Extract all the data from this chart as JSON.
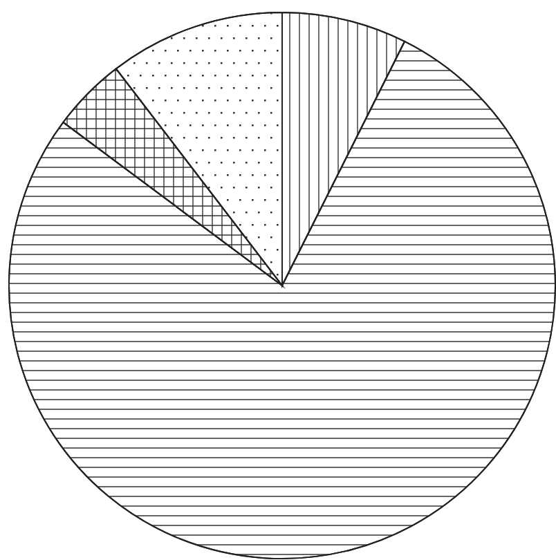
{
  "chart_data": {
    "type": "pie",
    "categories": [
      null,
      null,
      null,
      null
    ],
    "values": [
      7.4,
      77.8,
      4.4,
      10.4
    ],
    "colors": [
      "#ffffff",
      "#ffffff",
      "#ffffff",
      "#ffffff"
    ],
    "legend": false
  }
}
